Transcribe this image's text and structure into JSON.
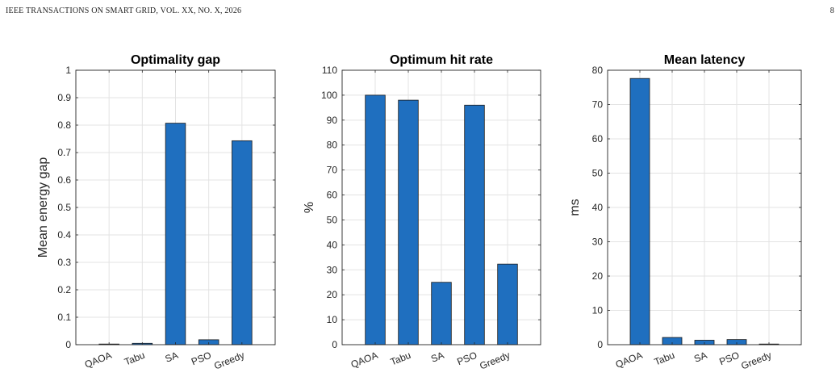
{
  "header": {
    "journal": "IEEE TRANSACTIONS ON SMART GRID, VOL. XX, NO. X, 2026",
    "page_number": "8"
  },
  "colors": {
    "bar": "#1f6fbf",
    "bar_edge": "#1a1a1a",
    "grid": "#e3e3e3",
    "axis": "#262626"
  },
  "chart_data": [
    {
      "type": "bar",
      "title": "Optimality gap",
      "ylabel": "Mean energy gap",
      "xlabel": "",
      "categories": [
        "QAOA",
        "Tabu",
        "SA",
        "PSO",
        "Greedy"
      ],
      "values": [
        0,
        0.005,
        0.807,
        0.018,
        0.743
      ],
      "ylim": [
        0,
        1
      ],
      "yticks": [
        0,
        0.1,
        0.2,
        0.3,
        0.4,
        0.5,
        0.6,
        0.7,
        0.8,
        0.9,
        1
      ],
      "ytick_labels": [
        "0",
        "0.1",
        "0.2",
        "0.3",
        "0.4",
        "0.5",
        "0.6",
        "0.7",
        "0.8",
        "0.9",
        "1"
      ],
      "grid": true
    },
    {
      "type": "bar",
      "title": "Optimum hit rate",
      "ylabel": "%",
      "xlabel": "",
      "categories": [
        "QAOA",
        "Tabu",
        "SA",
        "PSO",
        "Greedy"
      ],
      "values": [
        100,
        98,
        25,
        96,
        32.3
      ],
      "ylim": [
        0,
        110
      ],
      "yticks": [
        0,
        10,
        20,
        30,
        40,
        50,
        60,
        70,
        80,
        90,
        100,
        110
      ],
      "ytick_labels": [
        "0",
        "10",
        "20",
        "30",
        "40",
        "50",
        "60",
        "70",
        "80",
        "90",
        "100",
        "110"
      ],
      "grid": true
    },
    {
      "type": "bar",
      "title": "Mean latency",
      "ylabel": "ms",
      "xlabel": "",
      "categories": [
        "QAOA",
        "Tabu",
        "SA",
        "PSO",
        "Greedy"
      ],
      "values": [
        77.6,
        2.1,
        1.3,
        1.5,
        0.1
      ],
      "ylim": [
        0,
        80
      ],
      "yticks": [
        0,
        10,
        20,
        30,
        40,
        50,
        60,
        70,
        80
      ],
      "ytick_labels": [
        "0",
        "10",
        "20",
        "30",
        "40",
        "50",
        "60",
        "70",
        "80"
      ],
      "grid": true
    }
  ]
}
